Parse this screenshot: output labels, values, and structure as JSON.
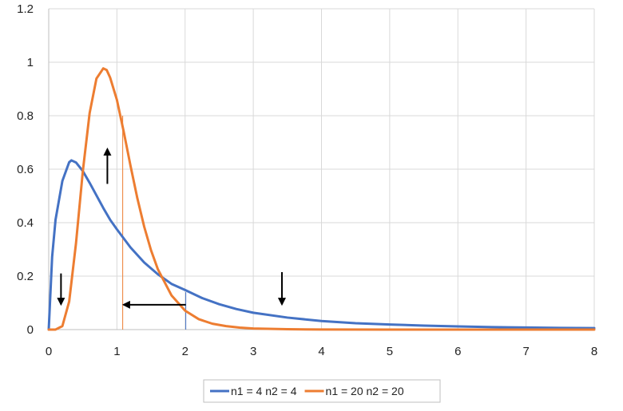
{
  "chart_data": {
    "type": "line",
    "title": "",
    "xlabel": "",
    "ylabel": "",
    "xlim": [
      0,
      8
    ],
    "ylim": [
      0,
      1.2
    ],
    "x_ticks": [
      "0",
      "1",
      "2",
      "3",
      "4",
      "5",
      "6",
      "7",
      "8"
    ],
    "y_ticks": [
      "0",
      "0.2",
      "0.4",
      "0.6",
      "0.8",
      "1",
      "1.2"
    ],
    "grid": true,
    "legend_position": "bottom",
    "series": [
      {
        "name": "n1 = 4  n2 = 4",
        "color": "#4472C4",
        "x": [
          0,
          0.05,
          0.1,
          0.2,
          0.3,
          0.333,
          0.4,
          0.5,
          0.6,
          0.7,
          0.8,
          0.9,
          1.0,
          1.2,
          1.4,
          1.6,
          1.8,
          2.0,
          2.25,
          2.5,
          2.75,
          3.0,
          3.5,
          4.0,
          4.5,
          5.0,
          5.5,
          6.0,
          6.5,
          7.0,
          7.5,
          8.0
        ],
        "values": [
          0,
          0.272,
          0.411,
          0.556,
          0.626,
          0.633,
          0.625,
          0.593,
          0.549,
          0.502,
          0.455,
          0.411,
          0.375,
          0.307,
          0.251,
          0.207,
          0.171,
          0.148,
          0.118,
          0.095,
          0.077,
          0.063,
          0.045,
          0.032,
          0.024,
          0.019,
          0.015,
          0.012,
          0.0095,
          0.0078,
          0.0065,
          0.0055
        ]
      },
      {
        "name": "n1 = 20  n2 = 20",
        "color": "#ED7D31",
        "x": [
          0,
          0.1,
          0.2,
          0.3,
          0.4,
          0.5,
          0.6,
          0.7,
          0.8,
          0.85,
          0.9,
          1.0,
          1.1,
          1.2,
          1.3,
          1.4,
          1.5,
          1.6,
          1.8,
          2.0,
          2.2,
          2.4,
          2.6,
          2.8,
          3.0,
          3.5,
          4.0,
          5.0,
          6.0,
          7.0,
          8.0
        ],
        "values": [
          0,
          0.0001,
          0.013,
          0.105,
          0.323,
          0.592,
          0.81,
          0.939,
          0.977,
          0.971,
          0.943,
          0.859,
          0.74,
          0.612,
          0.491,
          0.385,
          0.297,
          0.226,
          0.128,
          0.071,
          0.039,
          0.022,
          0.013,
          0.0075,
          0.004,
          0.0013,
          0.0004,
          0.0001,
          0,
          0,
          0
        ]
      }
    ],
    "annotation_lines": [
      {
        "x": 1.085,
        "y_top": 0.8,
        "color": "#ED7D31"
      },
      {
        "x": 2.01,
        "y_top": 0.14,
        "color": "#4472C4"
      }
    ],
    "annotation_arrows": [
      {
        "x1": 0.18,
        "y1": 0.21,
        "x2": 0.18,
        "y2": 0.095
      },
      {
        "x1": 0.86,
        "y1": 0.545,
        "x2": 0.86,
        "y2": 0.675
      },
      {
        "x1": 2.01,
        "y1": 0.093,
        "x2": 1.1,
        "y2": 0.093
      },
      {
        "x1": 3.42,
        "y1": 0.215,
        "x2": 3.42,
        "y2": 0.095
      }
    ]
  }
}
